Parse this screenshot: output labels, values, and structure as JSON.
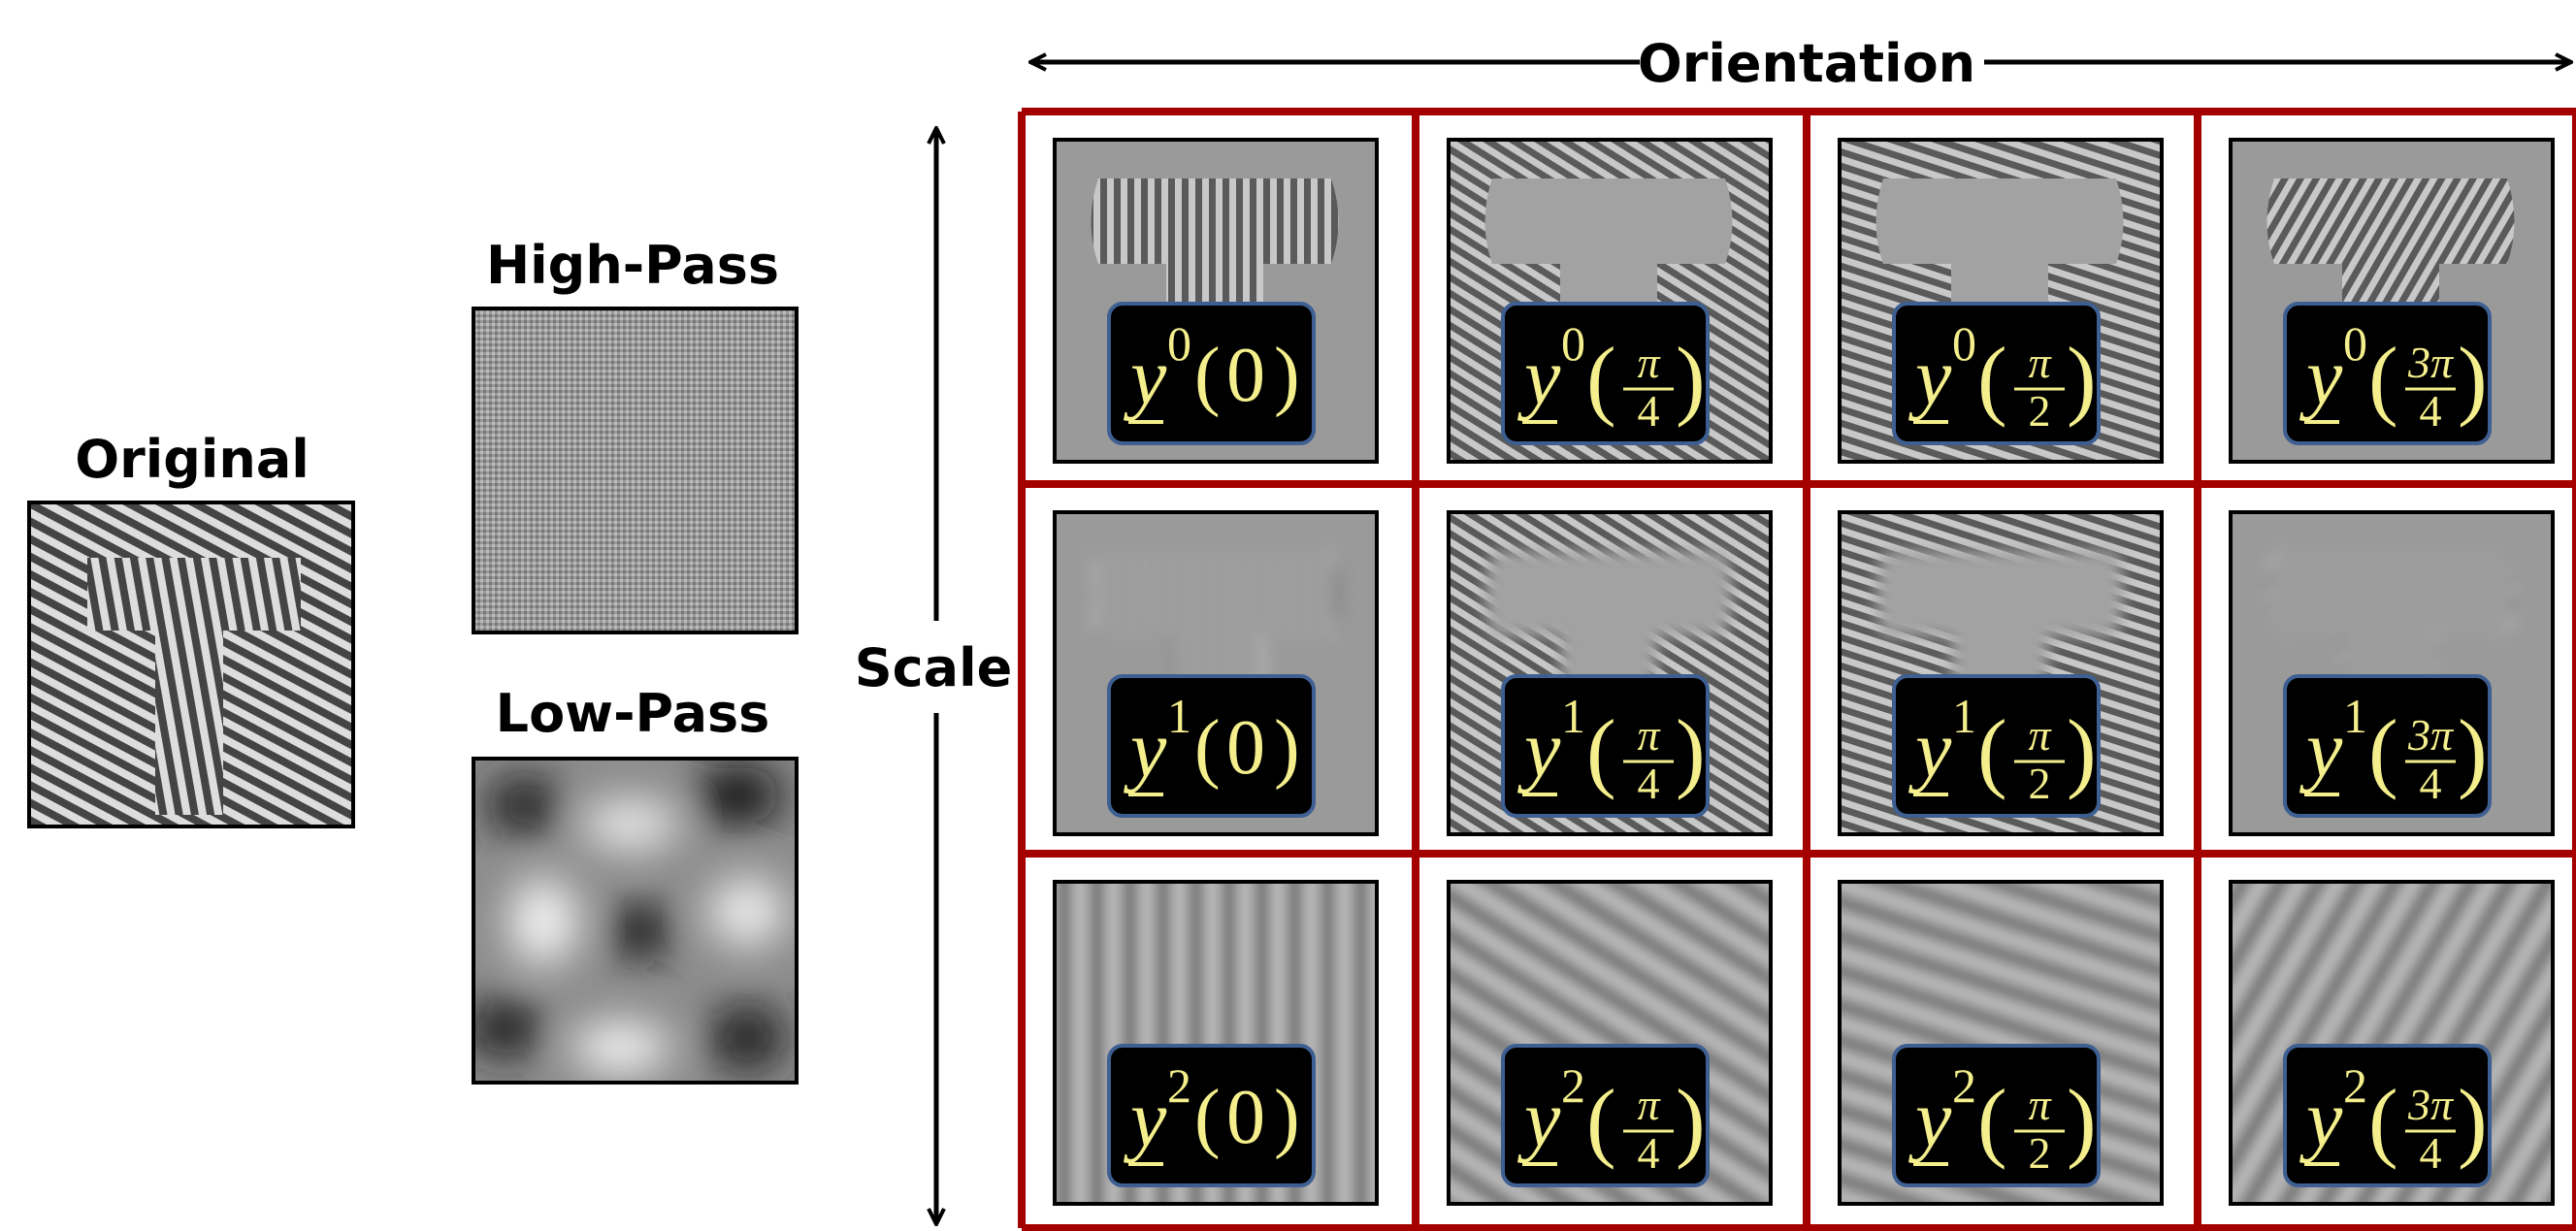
{
  "original": {
    "title": "Original"
  },
  "high_pass": {
    "title": "High-Pass"
  },
  "low_pass": {
    "title": "Low-Pass"
  },
  "axes": {
    "orientation": "Orientation",
    "scale": "Scale"
  },
  "grid": {
    "symbol": "y",
    "paren_open": "(",
    "paren_close": ")",
    "scales": [
      "0",
      "1",
      "2"
    ],
    "orientations": [
      {
        "text": "0"
      },
      {
        "num": "π",
        "den": "4"
      },
      {
        "num": "π",
        "den": "2"
      },
      {
        "num": "3π",
        "den": "4"
      }
    ]
  }
}
